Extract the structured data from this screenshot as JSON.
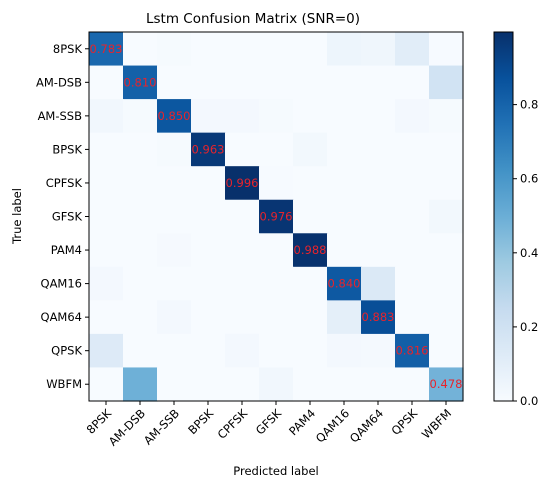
{
  "chart_data": {
    "type": "heatmap",
    "title": "Lstm Confusion Matrix (SNR=0)",
    "xlabel": "Predicted label",
    "ylabel": "True label",
    "x_categories": [
      "8PSK",
      "AM-DSB",
      "AM-SSB",
      "BPSK",
      "CPFSK",
      "GFSK",
      "PAM4",
      "QAM16",
      "QAM64",
      "QPSK",
      "WBFM"
    ],
    "y_categories": [
      "8PSK",
      "AM-DSB",
      "AM-SSB",
      "BPSK",
      "CPFSK",
      "GFSK",
      "PAM4",
      "QAM16",
      "QAM64",
      "QPSK",
      "WBFM"
    ],
    "matrix": [
      [
        0.783,
        0.0,
        0.01,
        0.0,
        0.0,
        0.0,
        0.0,
        0.05,
        0.04,
        0.11,
        0.007
      ],
      [
        0.0,
        0.81,
        0.0,
        0.0,
        0.0,
        0.0,
        0.0,
        0.0,
        0.0,
        0.0,
        0.19
      ],
      [
        0.03,
        0.01,
        0.85,
        0.02,
        0.02,
        0.01,
        0.0,
        0.0,
        0.0,
        0.02,
        0.01
      ],
      [
        0.0,
        0.0,
        0.01,
        0.963,
        0.0,
        0.0,
        0.027,
        0.0,
        0.0,
        0.0,
        0.0
      ],
      [
        0.0,
        0.0,
        0.0,
        0.0,
        0.996,
        0.004,
        0.0,
        0.0,
        0.0,
        0.0,
        0.0
      ],
      [
        0.0,
        0.0,
        0.0,
        0.0,
        0.0,
        0.976,
        0.0,
        0.0,
        0.0,
        0.0,
        0.024
      ],
      [
        0.0,
        0.0,
        0.012,
        0.0,
        0.0,
        0.0,
        0.988,
        0.0,
        0.0,
        0.0,
        0.0
      ],
      [
        0.02,
        0.0,
        0.0,
        0.0,
        0.0,
        0.0,
        0.0,
        0.84,
        0.14,
        0.0,
        0.0
      ],
      [
        0.0,
        0.0,
        0.02,
        0.0,
        0.0,
        0.0,
        0.0,
        0.097,
        0.883,
        0.0,
        0.0
      ],
      [
        0.13,
        0.0,
        0.0,
        0.0,
        0.02,
        0.0,
        0.0,
        0.02,
        0.014,
        0.816,
        0.0
      ],
      [
        0.0,
        0.49,
        0.0,
        0.0,
        0.0,
        0.032,
        0.0,
        0.0,
        0.0,
        0.0,
        0.478
      ]
    ],
    "diagonal_labels": [
      "0.783",
      "0.810",
      "0.850",
      "0.963",
      "0.996",
      "0.976",
      "0.988",
      "0.840",
      "0.883",
      "0.816",
      "0.478"
    ],
    "colorbar": {
      "colormap": "Blues",
      "ticks": [
        "0.0",
        "0.2",
        "0.4",
        "0.6",
        "0.8"
      ],
      "tick_values": [
        0,
        0.2,
        0.4,
        0.6,
        0.8
      ],
      "range": [
        0,
        0.996
      ]
    },
    "grid": false
  },
  "colors": {
    "annotation": "#e8232b",
    "axis": "#000000"
  }
}
